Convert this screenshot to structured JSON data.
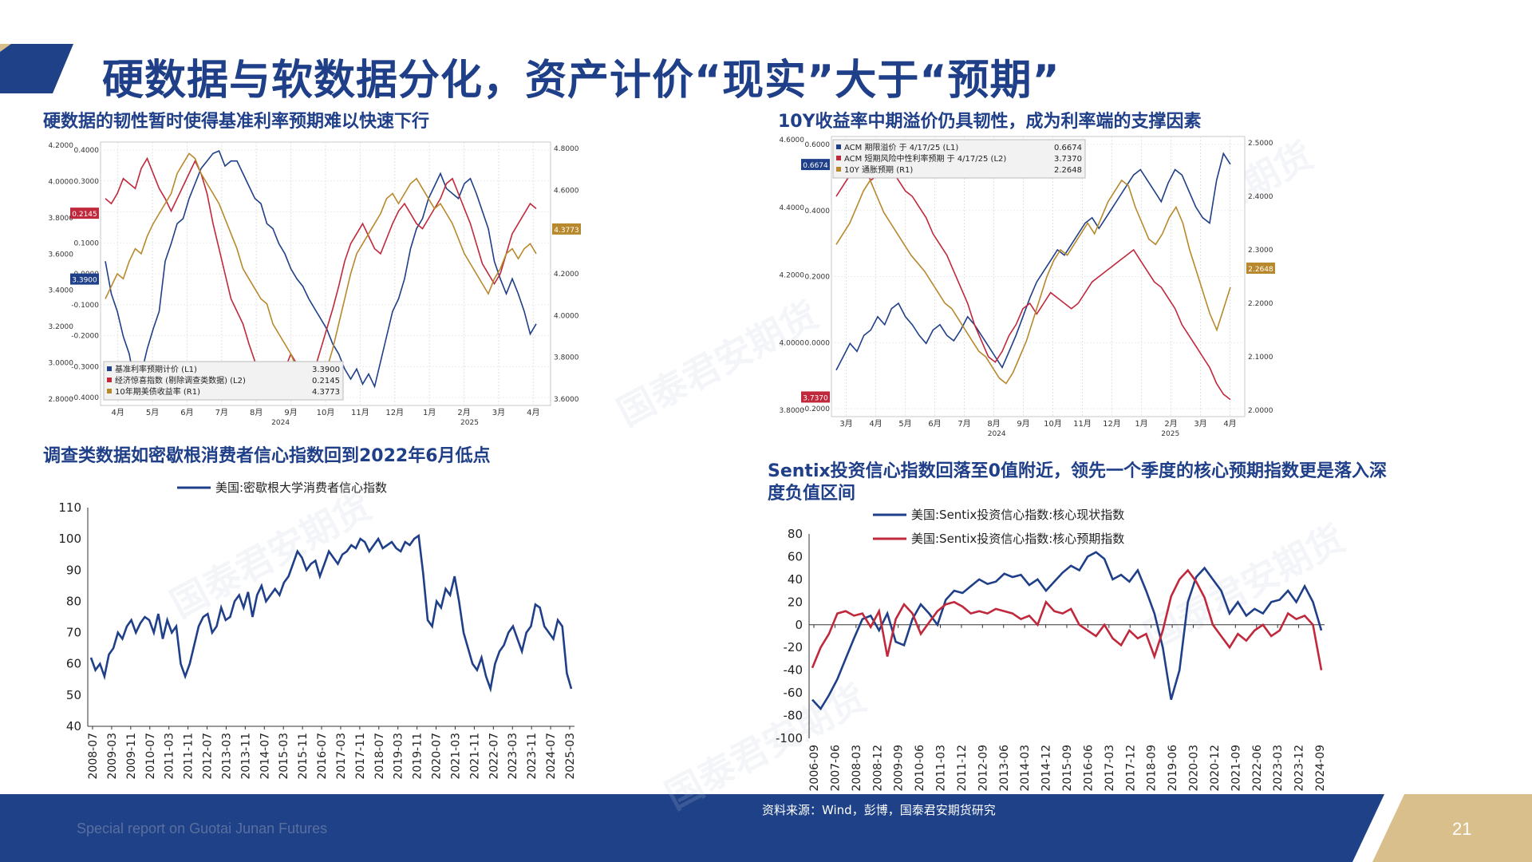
{
  "header": {
    "title": "硬数据与软数据分化，资产计价“现实”大于“预期”"
  },
  "sections": {
    "top_left": "硬数据的韧性暂时使得基准利率预期难以快速下行",
    "top_right": "10Y收益率中期溢价仍具韧性，成为利率端的支撑因素",
    "bottom_left": "调查类数据如密歇根消费者信心指数回到2022年6月低点",
    "bottom_right_1": "Sentix投资信心指数回落至0值附近，领先一个季度的核心预期指数更是落入深",
    "bottom_right_2": "度负值区间"
  },
  "watermark": "国泰君安期货",
  "footer": {
    "source": "资料来源：Wind，彭博，国泰君安期货研究",
    "report": "Special report on Guotai Junan Futures",
    "page": "21"
  },
  "colors": {
    "navy": "#1f3f88",
    "red": "#c0283c",
    "gold": "#b8892c",
    "footer": "#1e4187",
    "tan": "#d9bf8c"
  },
  "chart_data": [
    {
      "id": "tl",
      "type": "line",
      "x_ticks": [
        "4月",
        "5月",
        "6月",
        "7月",
        "8月",
        "9月",
        "10月",
        "11月",
        "12月",
        "1月",
        "2月",
        "3月",
        "4月"
      ],
      "year_labels": [
        "2024",
        "2025"
      ],
      "left_axis_1": [
        "0.4000",
        "0.3000",
        "0.2000",
        "0.1000",
        "0.0000",
        "-0.1000",
        "-0.2000",
        "-0.3000",
        "-0.4000"
      ],
      "left_axis_2": [
        "4.2000",
        "4.0000",
        "3.8000",
        "3.6000",
        "3.4000",
        "3.2000",
        "3.0000",
        "2.8000"
      ],
      "right_axis": [
        "4.8000",
        "4.6000",
        "4.4000",
        "4.2000",
        "4.0000",
        "3.8000",
        "3.6000"
      ],
      "tags": [
        {
          "text": "0.2145",
          "color": "#c0283c",
          "side": "left",
          "y": 0.27
        },
        {
          "text": "3.3900",
          "color": "#1f3f88",
          "side": "left",
          "y": 0.52
        },
        {
          "text": "4.3773",
          "color": "#b8892c",
          "side": "right",
          "y": 0.33
        }
      ],
      "legend": [
        {
          "name": "基准利率预期计价 (L1)",
          "value": "3.3900",
          "color": "#1f3f88"
        },
        {
          "name": "经济惊喜指数 (剔除调查类数据) (L2)",
          "value": "0.2145",
          "color": "#c0283c"
        },
        {
          "name": "10年期美债收益率 (R1)",
          "value": "4.3773",
          "color": "#b8892c"
        }
      ],
      "series": [
        {
          "name": "基准利率预期计价 (L1)",
          "color": "#1f3f88",
          "values": [
            0.55,
            0.42,
            0.35,
            0.25,
            0.18,
            0.05,
            0.1,
            0.2,
            0.28,
            0.35,
            0.55,
            0.62,
            0.7,
            0.72,
            0.8,
            0.86,
            0.92,
            0.95,
            0.98,
            0.99,
            0.93,
            0.95,
            0.95,
            0.9,
            0.85,
            0.8,
            0.78,
            0.7,
            0.68,
            0.62,
            0.58,
            0.52,
            0.48,
            0.45,
            0.4,
            0.36,
            0.32,
            0.28,
            0.22,
            0.18,
            0.12,
            0.08,
            0.12,
            0.06,
            0.1,
            0.05,
            0.15,
            0.25,
            0.35,
            0.4,
            0.48,
            0.6,
            0.68,
            0.72,
            0.8,
            0.85,
            0.9,
            0.84,
            0.82,
            0.8,
            0.86,
            0.88,
            0.82,
            0.75,
            0.68,
            0.55,
            0.48,
            0.42,
            0.48,
            0.42,
            0.35,
            0.26,
            0.3
          ]
        },
        {
          "name": "经济惊喜指数 (剔除调查类数据) (L2)",
          "color": "#c0283c",
          "values": [
            0.8,
            0.78,
            0.82,
            0.88,
            0.86,
            0.84,
            0.92,
            0.96,
            0.9,
            0.84,
            0.8,
            0.75,
            0.8,
            0.85,
            0.9,
            0.95,
            0.9,
            0.82,
            0.7,
            0.6,
            0.5,
            0.4,
            0.35,
            0.3,
            0.22,
            0.15,
            0.12,
            0.08,
            0.1,
            0.06,
            0.12,
            0.18,
            0.14,
            0.1,
            0.06,
            0.12,
            0.2,
            0.28,
            0.36,
            0.45,
            0.55,
            0.62,
            0.66,
            0.7,
            0.65,
            0.6,
            0.58,
            0.64,
            0.7,
            0.75,
            0.78,
            0.74,
            0.7,
            0.68,
            0.72,
            0.76,
            0.8,
            0.86,
            0.88,
            0.82,
            0.76,
            0.7,
            0.62,
            0.54,
            0.5,
            0.46,
            0.5,
            0.58,
            0.66,
            0.7,
            0.74,
            0.78,
            0.76
          ]
        },
        {
          "name": "10年期美债收益率 (R1)",
          "color": "#b8892c",
          "values": [
            0.4,
            0.45,
            0.5,
            0.48,
            0.55,
            0.6,
            0.58,
            0.65,
            0.7,
            0.74,
            0.78,
            0.82,
            0.9,
            0.94,
            0.98,
            0.96,
            0.9,
            0.86,
            0.82,
            0.78,
            0.72,
            0.66,
            0.6,
            0.52,
            0.48,
            0.44,
            0.4,
            0.38,
            0.3,
            0.26,
            0.22,
            0.18,
            0.12,
            0.1,
            0.06,
            0.05,
            0.08,
            0.12,
            0.2,
            0.3,
            0.4,
            0.5,
            0.58,
            0.62,
            0.66,
            0.7,
            0.74,
            0.8,
            0.82,
            0.78,
            0.82,
            0.86,
            0.88,
            0.84,
            0.8,
            0.76,
            0.78,
            0.74,
            0.7,
            0.64,
            0.58,
            0.54,
            0.5,
            0.46,
            0.42,
            0.48,
            0.52,
            0.58,
            0.6,
            0.56,
            0.6,
            0.62,
            0.58
          ]
        }
      ]
    },
    {
      "id": "tr",
      "type": "line",
      "x_ticks": [
        "3月",
        "4月",
        "5月",
        "6月",
        "7月",
        "8月",
        "9月",
        "10月",
        "11月",
        "12月",
        "1月",
        "2月",
        "3月",
        "4月"
      ],
      "year_labels": [
        "2024",
        "2025"
      ],
      "left_axis_1": [
        "0.6000",
        "0.4000",
        "0.2000",
        "0.0000",
        "-0.2000"
      ],
      "left_axis_2": [
        "4.6000",
        "4.4000",
        "4.2000",
        "4.0000",
        "3.8000"
      ],
      "right_axis": [
        "2.5000",
        "2.4000",
        "2.3000",
        "2.2000",
        "2.1000",
        "2.0000"
      ],
      "tags": [
        {
          "text": "0.6674",
          "color": "#1f3f88",
          "side": "left",
          "y": 0.1
        },
        {
          "text": "3.7370",
          "color": "#c0283c",
          "side": "left",
          "y": 0.93
        },
        {
          "text": "2.2648",
          "color": "#b8892c",
          "side": "right",
          "y": 0.47
        }
      ],
      "legend": [
        {
          "name": "ACM 期限溢价 于 4/17/25 (L1)",
          "value": "0.6674",
          "color": "#1f3f88"
        },
        {
          "name": "ACM 短期风险中性利率预期 于 4/17/25 (L2)",
          "value": "3.7370",
          "color": "#c0283c"
        },
        {
          "name": "10Y 通胀预期 (R1)",
          "value": "2.2648",
          "color": "#b8892c"
        }
      ],
      "series": [
        {
          "name": "ACM 期限溢价 于 4/17/25 (L1)",
          "color": "#1f3f88",
          "values": [
            0.15,
            0.2,
            0.25,
            0.22,
            0.28,
            0.3,
            0.35,
            0.32,
            0.38,
            0.4,
            0.35,
            0.32,
            0.28,
            0.25,
            0.3,
            0.32,
            0.28,
            0.26,
            0.3,
            0.35,
            0.32,
            0.28,
            0.24,
            0.2,
            0.16,
            0.22,
            0.28,
            0.35,
            0.42,
            0.48,
            0.52,
            0.56,
            0.6,
            0.58,
            0.62,
            0.66,
            0.7,
            0.72,
            0.68,
            0.72,
            0.76,
            0.8,
            0.84,
            0.88,
            0.9,
            0.86,
            0.82,
            0.78,
            0.85,
            0.9,
            0.88,
            0.82,
            0.76,
            0.72,
            0.7,
            0.86,
            0.96,
            0.92
          ]
        },
        {
          "name": "ACM 短期风险中性利率预期 于 4/17/25 (L2)",
          "color": "#c0283c",
          "values": [
            0.8,
            0.84,
            0.88,
            0.92,
            0.9,
            0.86,
            0.88,
            0.92,
            0.9,
            0.86,
            0.82,
            0.8,
            0.76,
            0.72,
            0.66,
            0.62,
            0.58,
            0.52,
            0.46,
            0.4,
            0.32,
            0.26,
            0.2,
            0.18,
            0.22,
            0.28,
            0.32,
            0.38,
            0.4,
            0.36,
            0.4,
            0.44,
            0.42,
            0.4,
            0.38,
            0.4,
            0.44,
            0.48,
            0.5,
            0.52,
            0.54,
            0.56,
            0.58,
            0.6,
            0.56,
            0.52,
            0.48,
            0.46,
            0.42,
            0.38,
            0.32,
            0.28,
            0.24,
            0.2,
            0.16,
            0.1,
            0.06,
            0.04
          ]
        },
        {
          "name": "10Y 通胀预期 (R1)",
          "color": "#b8892c",
          "values": [
            0.62,
            0.66,
            0.7,
            0.76,
            0.82,
            0.86,
            0.8,
            0.74,
            0.7,
            0.66,
            0.62,
            0.58,
            0.55,
            0.52,
            0.48,
            0.44,
            0.4,
            0.38,
            0.34,
            0.3,
            0.26,
            0.22,
            0.2,
            0.16,
            0.12,
            0.1,
            0.14,
            0.2,
            0.26,
            0.34,
            0.42,
            0.5,
            0.56,
            0.6,
            0.58,
            0.62,
            0.66,
            0.7,
            0.66,
            0.72,
            0.78,
            0.82,
            0.86,
            0.84,
            0.76,
            0.7,
            0.64,
            0.62,
            0.66,
            0.72,
            0.76,
            0.7,
            0.6,
            0.52,
            0.44,
            0.36,
            0.3,
            0.38,
            0.46
          ]
        }
      ]
    },
    {
      "id": "bl",
      "type": "line",
      "legend": [
        "美国:密歇根大学消费者信心指数"
      ],
      "ylim": [
        40,
        110
      ],
      "y_ticks": [
        40,
        50,
        60,
        70,
        80,
        90,
        100,
        110
      ],
      "x_ticks": [
        "2008-07",
        "2009-03",
        "2009-11",
        "2010-07",
        "2011-03",
        "2011-11",
        "2012-07",
        "2013-03",
        "2013-11",
        "2014-07",
        "2015-03",
        "2015-11",
        "2016-07",
        "2017-03",
        "2017-11",
        "2018-07",
        "2019-03",
        "2019-11",
        "2020-07",
        "2021-03",
        "2021-11",
        "2022-07",
        "2023-03",
        "2023-11",
        "2024-07",
        "2025-03"
      ],
      "series": [
        {
          "name": "美国:密歇根大学消费者信心指数",
          "color": "#1f3f88",
          "values": [
            62,
            58,
            60,
            56,
            63,
            65,
            70,
            68,
            72,
            74,
            70,
            73,
            75,
            74,
            70,
            76,
            68,
            74,
            70,
            72,
            60,
            56,
            60,
            66,
            72,
            75,
            76,
            70,
            72,
            78,
            74,
            75,
            80,
            82,
            78,
            83,
            75,
            82,
            85,
            80,
            82,
            84,
            82,
            86,
            88,
            92,
            96,
            94,
            90,
            92,
            93,
            88,
            92,
            96,
            94,
            92,
            95,
            96,
            98,
            97,
            100,
            99,
            96,
            98,
            100,
            97,
            98,
            99,
            97,
            96,
            99,
            98,
            100,
            101,
            89,
            74,
            72,
            80,
            78,
            84,
            82,
            88,
            80,
            70,
            65,
            60,
            58,
            62,
            56,
            52,
            60,
            64,
            66,
            70,
            72,
            68,
            64,
            70,
            72,
            79,
            78,
            72,
            70,
            68,
            74,
            72,
            57,
            52
          ]
        }
      ]
    },
    {
      "id": "br",
      "type": "line",
      "legend": [
        "美国:Sentix投资信心指数:核心现状指数",
        "美国:Sentix投资信心指数:核心预期指数"
      ],
      "ylim": [
        -100,
        80
      ],
      "y_ticks": [
        -100,
        -80,
        -60,
        -40,
        -20,
        0,
        20,
        40,
        60,
        80
      ],
      "x_ticks": [
        "2006-09",
        "2007-06",
        "2008-03",
        "2008-12",
        "2009-09",
        "2010-06",
        "2011-03",
        "2011-12",
        "2012-09",
        "2013-06",
        "2014-03",
        "2014-12",
        "2015-09",
        "2016-06",
        "2017-03",
        "2017-12",
        "2018-09",
        "2019-06",
        "2020-03",
        "2020-12",
        "2021-09",
        "2022-06",
        "2023-03",
        "2023-12",
        "2024-09"
      ],
      "series": [
        {
          "name": "美国:Sentix投资信心指数:核心现状指数",
          "color": "#1f3f88",
          "values": [
            -66,
            -74,
            -62,
            -48,
            -30,
            -12,
            5,
            8,
            -5,
            10,
            -15,
            -18,
            5,
            18,
            10,
            0,
            22,
            30,
            28,
            34,
            40,
            36,
            38,
            45,
            42,
            44,
            35,
            40,
            30,
            38,
            46,
            52,
            48,
            60,
            64,
            58,
            40,
            44,
            38,
            48,
            30,
            10,
            -20,
            -66,
            -40,
            20,
            42,
            50,
            40,
            30,
            10,
            20,
            8,
            14,
            10,
            20,
            22,
            30,
            20,
            34,
            20,
            -5
          ]
        },
        {
          "name": "美国:Sentix投资信心指数:核心预期指数",
          "color": "#c0283c",
          "values": [
            -38,
            -20,
            -8,
            10,
            12,
            8,
            10,
            -2,
            12,
            -28,
            5,
            18,
            10,
            -8,
            2,
            12,
            18,
            20,
            16,
            10,
            12,
            10,
            14,
            12,
            10,
            5,
            8,
            0,
            20,
            12,
            10,
            14,
            0,
            -5,
            -10,
            0,
            -12,
            -18,
            -5,
            -12,
            -8,
            -28,
            -5,
            25,
            40,
            48,
            38,
            24,
            0,
            -10,
            -20,
            -8,
            -14,
            -5,
            0,
            -10,
            -5,
            10,
            5,
            8,
            0,
            -40
          ]
        }
      ]
    }
  ]
}
